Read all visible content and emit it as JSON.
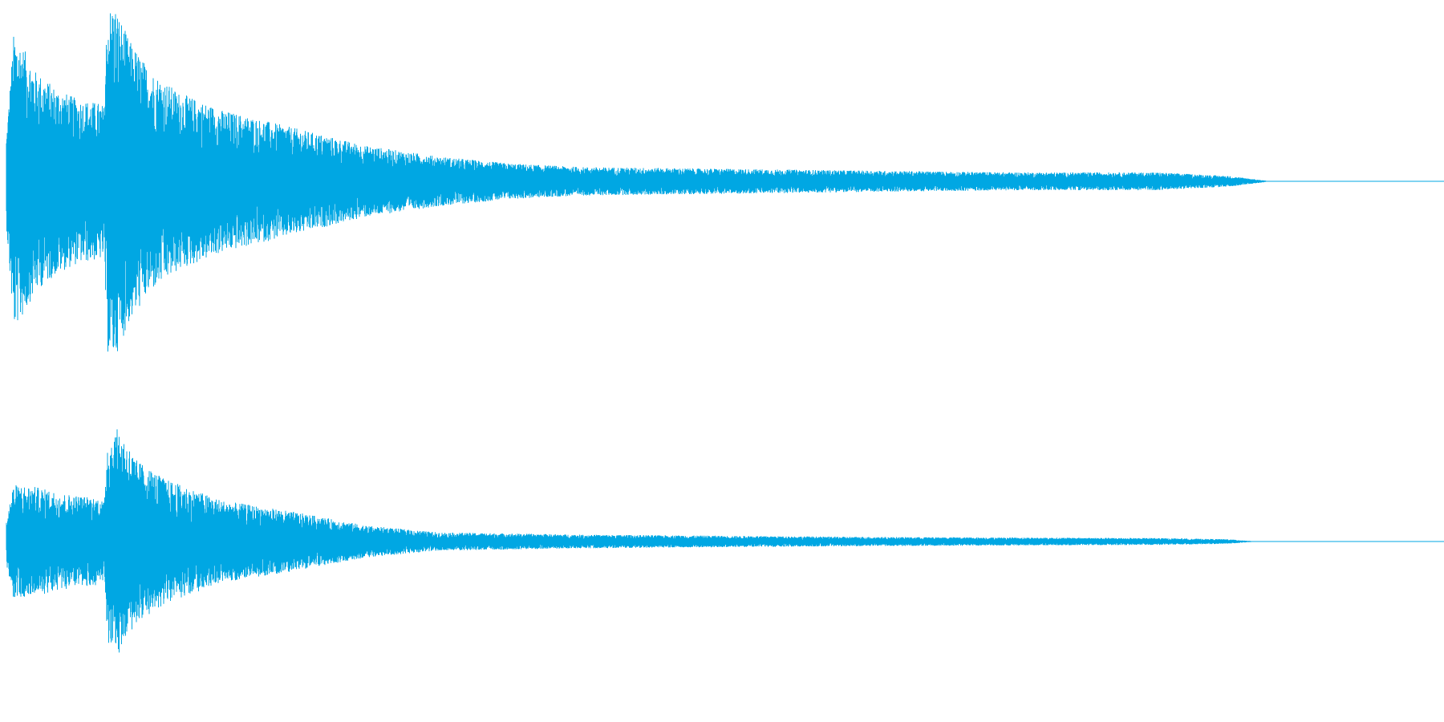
{
  "view": {
    "background_color": "#ffffff",
    "wave_color": "#00a7e3"
  },
  "channels": [
    {
      "name": "",
      "peak_envelope": [
        [
          0.0,
          0.25
        ],
        [
          0.005,
          0.82
        ],
        [
          0.01,
          0.78
        ],
        [
          0.02,
          0.62
        ],
        [
          0.035,
          0.52
        ],
        [
          0.05,
          0.46
        ],
        [
          0.065,
          0.44
        ],
        [
          0.068,
          0.42
        ],
        [
          0.07,
          0.96
        ],
        [
          0.075,
          1.0
        ],
        [
          0.085,
          0.8
        ],
        [
          0.1,
          0.62
        ],
        [
          0.12,
          0.5
        ],
        [
          0.15,
          0.4
        ],
        [
          0.2,
          0.3
        ],
        [
          0.25,
          0.2
        ],
        [
          0.3,
          0.14
        ],
        [
          0.35,
          0.1
        ],
        [
          0.4,
          0.08
        ],
        [
          0.5,
          0.07
        ],
        [
          0.6,
          0.06
        ],
        [
          0.7,
          0.05
        ],
        [
          0.8,
          0.05
        ],
        [
          0.85,
          0.03
        ],
        [
          0.875,
          0.005
        ],
        [
          0.88,
          0.0
        ],
        [
          1.0,
          0.0
        ]
      ]
    },
    {
      "name": "",
      "peak_envelope": [
        [
          0.0,
          0.2
        ],
        [
          0.005,
          0.5
        ],
        [
          0.02,
          0.48
        ],
        [
          0.04,
          0.42
        ],
        [
          0.065,
          0.38
        ],
        [
          0.068,
          0.34
        ],
        [
          0.07,
          0.88
        ],
        [
          0.078,
          1.0
        ],
        [
          0.09,
          0.72
        ],
        [
          0.11,
          0.55
        ],
        [
          0.15,
          0.36
        ],
        [
          0.2,
          0.26
        ],
        [
          0.25,
          0.14
        ],
        [
          0.3,
          0.08
        ],
        [
          0.4,
          0.06
        ],
        [
          0.5,
          0.05
        ],
        [
          0.6,
          0.04
        ],
        [
          0.7,
          0.035
        ],
        [
          0.8,
          0.03
        ],
        [
          0.85,
          0.02
        ],
        [
          0.865,
          0.005
        ],
        [
          0.87,
          0.0
        ],
        [
          1.0,
          0.0
        ]
      ]
    }
  ]
}
